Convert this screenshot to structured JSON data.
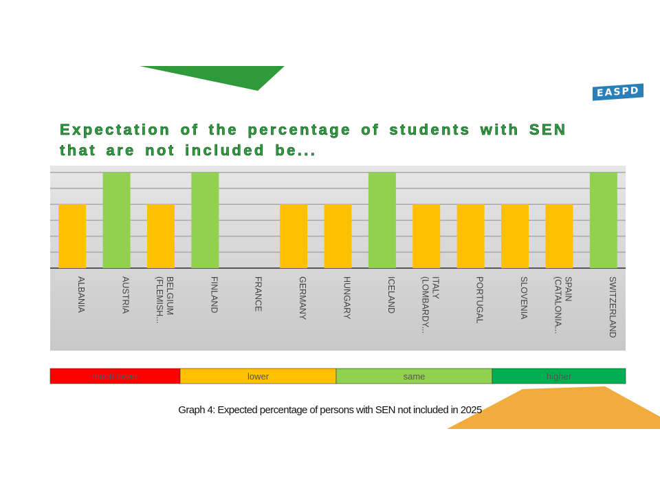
{
  "chart_data": {
    "type": "bar",
    "title": "Expectation of the percentage of students with SEN that are not included be...",
    "categories": [
      "ALBANIA",
      "AUSTRIA",
      "BELGIUM (FLEMISH...",
      "FINLAND",
      "FRANCE",
      "GERMANY",
      "HUNGARY",
      "ICELAND",
      "ITALY (LOMBARDY...",
      "PORTUGAL",
      "SLOVENIA",
      "SPAIN (CATALONIA...",
      "SWITZERLAND"
    ],
    "values": [
      4,
      6,
      4,
      6,
      null,
      4,
      4,
      6,
      4,
      4,
      4,
      4,
      6
    ],
    "colors": [
      "#ffc000",
      "#92d050",
      "#ffc000",
      "#92d050",
      "#ffc000",
      "#ffc000",
      "#ffc000",
      "#92d050",
      "#ffc000",
      "#ffc000",
      "#ffc000",
      "#ffc000",
      "#92d050"
    ],
    "ylim": [
      0,
      6.4
    ],
    "yticks": [
      0,
      1,
      2,
      3,
      4,
      5,
      6
    ],
    "grid": true,
    "tick_labels": false,
    "legend": [
      {
        "label": "much lower",
        "color": "#ff0000"
      },
      {
        "label": "lower",
        "color": "#ffc000"
      },
      {
        "label": "same",
        "color": "#92d050"
      },
      {
        "label": "higher",
        "color": "#00b050"
      }
    ],
    "caption": "Graph 4: Expected percentage of persons with SEN not included in 2025"
  },
  "logo": "EASPD"
}
